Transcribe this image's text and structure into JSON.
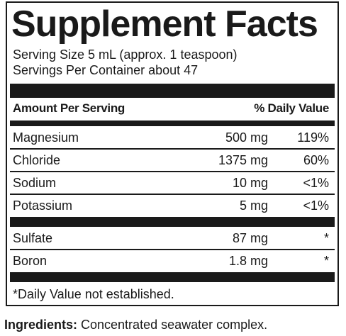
{
  "title": "Supplement Facts",
  "serving_size": "Serving Size 5 mL (approx. 1 teaspoon)",
  "servings_per_container": "Servings Per Container about 47",
  "header": {
    "amount_label": "Amount Per Serving",
    "dv_label": "% Daily Value"
  },
  "group1": [
    {
      "name": "Magnesium",
      "amount": "500 mg",
      "dv": "119%"
    },
    {
      "name": "Chloride",
      "amount": "1375 mg",
      "dv": "60%"
    },
    {
      "name": "Sodium",
      "amount": "10 mg",
      "dv": "<1%"
    },
    {
      "name": "Potassium",
      "amount": "5 mg",
      "dv": "<1%"
    }
  ],
  "group2": [
    {
      "name": "Sulfate",
      "amount": "87 mg",
      "dv": "*"
    },
    {
      "name": "Boron",
      "amount": "1.8 mg",
      "dv": "*"
    }
  ],
  "footnote": "*Daily Value not established.",
  "ingredients": {
    "label": "Ingredients:",
    "text": " Concentrated seawater complex."
  }
}
